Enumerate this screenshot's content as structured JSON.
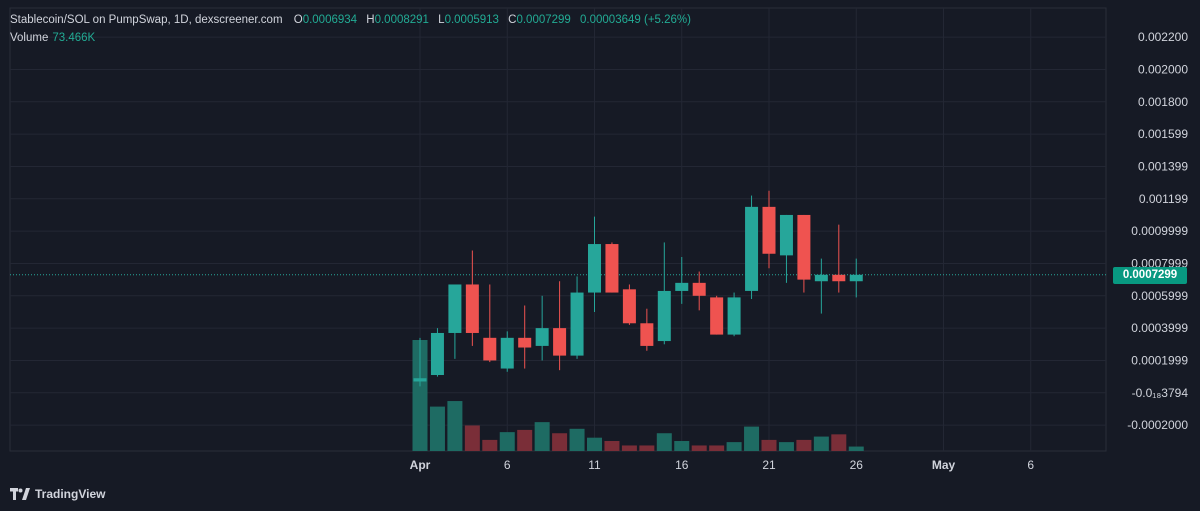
{
  "header": {
    "title": "Stablecoin/SOL on PumpSwap, 1D, dexscreener.com",
    "open_label": "O",
    "open": "0.0006934",
    "high_label": "H",
    "high": "0.0008291",
    "low_label": "L",
    "low": "0.0005913",
    "close_label": "C",
    "close": "0.0007299",
    "change": "0.00003649 (+5.26%)"
  },
  "volume": {
    "label": "Volume",
    "value": "73.466K"
  },
  "last_price_badge": "0.0007299",
  "brand": "TradingView",
  "colors": {
    "up": "#26a69a",
    "down": "#ef5350",
    "up_vol": "#1e6b63",
    "down_vol": "#7a2e38",
    "background": "#161a25",
    "grid": "#232734",
    "last_price_line": "#26a69a"
  },
  "chart_data": {
    "type": "candlestick",
    "y_tick_labels": [
      "0.002200",
      "0.002000",
      "0.001800",
      "0.001599",
      "0.001399",
      "0.001199",
      "0.0009999",
      "0.0007999",
      "0.0005999",
      "0.0003999",
      "0.0001999",
      "-0.0₁₈3794",
      "-0.0002000"
    ],
    "y_tick_values": [
      0.0022,
      0.002,
      0.0018,
      0.0016,
      0.0014,
      0.0012,
      0.001,
      0.0008,
      0.0006,
      0.0004,
      0.0002,
      0.0,
      -0.0002
    ],
    "ylim": [
      -0.00036,
      0.00238
    ],
    "x_tick_labels": [
      "Apr",
      "6",
      "11",
      "16",
      "21",
      "26",
      "May",
      "6"
    ],
    "x_tick_days": [
      1,
      6,
      11,
      16,
      21,
      26,
      31,
      36
    ],
    "last_price": 0.0007299,
    "candles": [
      {
        "day": 1,
        "o": 7e-05,
        "h": 0.00034,
        "l": 4e-05,
        "c": 9e-05
      },
      {
        "day": 2,
        "o": 0.00011,
        "h": 0.0004,
        "l": 0.0001,
        "c": 0.00037
      },
      {
        "day": 3,
        "o": 0.00037,
        "h": 0.00066,
        "l": 0.00021,
        "c": 0.00067
      },
      {
        "day": 4,
        "o": 0.00067,
        "h": 0.00088,
        "l": 0.00029,
        "c": 0.00037
      },
      {
        "day": 5,
        "o": 0.00034,
        "h": 0.00067,
        "l": 0.00019,
        "c": 0.0002
      },
      {
        "day": 6,
        "o": 0.00015,
        "h": 0.00038,
        "l": 0.00013,
        "c": 0.00034
      },
      {
        "day": 7,
        "o": 0.00034,
        "h": 0.00054,
        "l": 0.00015,
        "c": 0.00028
      },
      {
        "day": 8,
        "o": 0.00029,
        "h": 0.0006,
        "l": 0.0002,
        "c": 0.0004
      },
      {
        "day": 9,
        "o": 0.0004,
        "h": 0.00069,
        "l": 0.00014,
        "c": 0.00023
      },
      {
        "day": 10,
        "o": 0.00023,
        "h": 0.00072,
        "l": 0.00021,
        "c": 0.00062
      },
      {
        "day": 11,
        "o": 0.00062,
        "h": 0.00109,
        "l": 0.0005,
        "c": 0.00092
      },
      {
        "day": 12,
        "o": 0.00092,
        "h": 0.00093,
        "l": 0.00062,
        "c": 0.00062
      },
      {
        "day": 13,
        "o": 0.00064,
        "h": 0.00067,
        "l": 0.00042,
        "c": 0.00043
      },
      {
        "day": 14,
        "o": 0.00043,
        "h": 0.00052,
        "l": 0.00026,
        "c": 0.00029
      },
      {
        "day": 15,
        "o": 0.00032,
        "h": 0.00093,
        "l": 0.0003,
        "c": 0.00063
      },
      {
        "day": 16,
        "o": 0.00063,
        "h": 0.00084,
        "l": 0.00055,
        "c": 0.00068
      },
      {
        "day": 17,
        "o": 0.00068,
        "h": 0.00075,
        "l": 0.00051,
        "c": 0.0006
      },
      {
        "day": 18,
        "o": 0.00059,
        "h": 0.0006,
        "l": 0.00036,
        "c": 0.00036
      },
      {
        "day": 19,
        "o": 0.00036,
        "h": 0.00062,
        "l": 0.00035,
        "c": 0.00059
      },
      {
        "day": 20,
        "o": 0.00063,
        "h": 0.00122,
        "l": 0.00058,
        "c": 0.00115
      },
      {
        "day": 21,
        "o": 0.00115,
        "h": 0.00125,
        "l": 0.00077,
        "c": 0.00086
      },
      {
        "day": 22,
        "o": 0.00085,
        "h": 0.0011,
        "l": 0.00068,
        "c": 0.0011
      },
      {
        "day": 23,
        "o": 0.0011,
        "h": 0.0011,
        "l": 0.00062,
        "c": 0.0007
      },
      {
        "day": 24,
        "o": 0.00069,
        "h": 0.00083,
        "l": 0.00049,
        "c": 0.00073
      },
      {
        "day": 25,
        "o": 0.00073,
        "h": 0.00104,
        "l": 0.00062,
        "c": 0.00069
      },
      {
        "day": 26,
        "o": 0.00069,
        "h": 0.00083,
        "l": 0.00059,
        "c": 0.00073
      }
    ],
    "volume_scale_note": "relative",
    "volumes": [
      1.0,
      0.4,
      0.45,
      0.23,
      0.1,
      0.17,
      0.19,
      0.26,
      0.16,
      0.2,
      0.12,
      0.09,
      0.05,
      0.05,
      0.16,
      0.09,
      0.05,
      0.05,
      0.08,
      0.22,
      0.1,
      0.08,
      0.1,
      0.13,
      0.15,
      0.04
    ]
  }
}
